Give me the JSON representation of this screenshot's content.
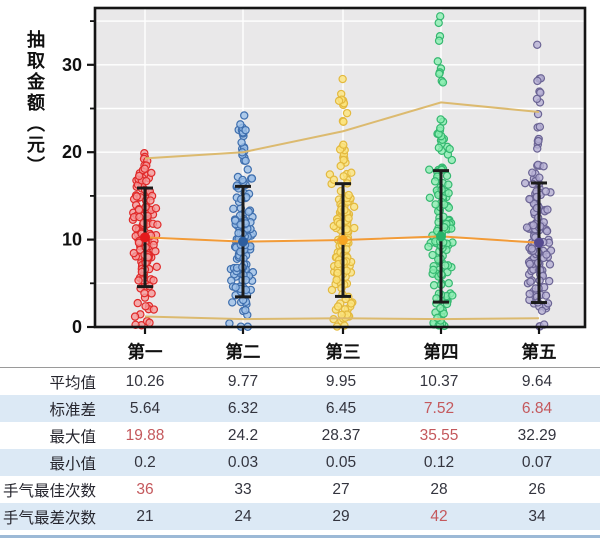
{
  "chart": {
    "y_axis_title": "抽取金额（元）",
    "y_ticks": [
      0,
      10,
      20,
      30
    ],
    "y_minor_ticks": [
      5,
      15,
      25,
      35
    ],
    "y_max": 36.5,
    "categories": [
      "第一",
      "第二",
      "第三",
      "第四",
      "第五"
    ],
    "colors": {
      "plot_bg": "#e9e8e9",
      "grid": "#ffffff",
      "frame": "#141414",
      "errorbar": "#1b1b1b",
      "line_outer": "#dcba6f",
      "line_mean": "#f29b38"
    },
    "groups": [
      {
        "label": "第一",
        "mean": 10.26,
        "std": 5.64,
        "max": 19.88,
        "min": 0.2,
        "fill": "#f59a9a",
        "stroke": "#e02b2b",
        "mean_dot": "#e41a1c"
      },
      {
        "label": "第二",
        "mean": 9.77,
        "std": 6.32,
        "max": 24.2,
        "min": 0.03,
        "fill": "#9dc0e8",
        "stroke": "#3f6fae",
        "mean_dot": "#2d5e9e"
      },
      {
        "label": "第三",
        "mean": 9.95,
        "std": 6.45,
        "max": 28.37,
        "min": 0.05,
        "fill": "#fbe37d",
        "stroke": "#e3b93e",
        "mean_dot": "#f5a623"
      },
      {
        "label": "第四",
        "mean": 10.37,
        "std": 7.52,
        "max": 35.55,
        "min": 0.12,
        "fill": "#8ceeb2",
        "stroke": "#35b870",
        "mean_dot": "#27b36a"
      },
      {
        "label": "第五",
        "mean": 9.64,
        "std": 6.84,
        "max": 32.29,
        "min": 0.07,
        "fill": "#b6b0d4",
        "stroke": "#6b6494",
        "mean_dot": "#554a8f"
      }
    ],
    "overlay_lines": {
      "upper": [
        19.3,
        20.0,
        22.4,
        25.7,
        24.6
      ],
      "mean": [
        10.26,
        9.77,
        9.95,
        10.37,
        9.64
      ],
      "lower": [
        1.2,
        0.9,
        1.0,
        0.9,
        1.0
      ]
    }
  },
  "table": {
    "highlight_color": "#c4585c",
    "alt_row_color": "#dce9f5",
    "columns": [
      "第一",
      "第二",
      "第三",
      "第四",
      "第五"
    ],
    "rows": [
      {
        "label": "平均值",
        "values": [
          "10.26",
          "9.77",
          "9.95",
          "10.37",
          "9.64"
        ],
        "red": [
          false,
          false,
          false,
          false,
          false
        ],
        "alt": false
      },
      {
        "label": "标准差",
        "values": [
          "5.64",
          "6.32",
          "6.45",
          "7.52",
          "6.84"
        ],
        "red": [
          false,
          false,
          false,
          true,
          true
        ],
        "alt": true
      },
      {
        "label": "最大值",
        "values": [
          "19.88",
          "24.2",
          "28.37",
          "35.55",
          "32.29"
        ],
        "red": [
          true,
          false,
          false,
          true,
          false
        ],
        "alt": false
      },
      {
        "label": "最小值",
        "values": [
          "0.2",
          "0.03",
          "0.05",
          "0.12",
          "0.07"
        ],
        "red": [
          false,
          false,
          false,
          false,
          false
        ],
        "alt": true
      },
      {
        "label": "手气最佳次数",
        "values": [
          "36",
          "33",
          "27",
          "28",
          "26"
        ],
        "red": [
          true,
          false,
          false,
          false,
          false
        ],
        "alt": false
      },
      {
        "label": "手气最差次数",
        "values": [
          "21",
          "24",
          "29",
          "42",
          "34"
        ],
        "red": [
          false,
          false,
          false,
          true,
          false
        ],
        "alt": true
      }
    ]
  },
  "chart_data": {
    "type": "strip",
    "title": "",
    "xlabel": "",
    "ylabel": "抽取金额（元）",
    "ylim": [
      0,
      36.5
    ],
    "yticks": [
      0,
      10,
      20,
      30
    ],
    "grid": true,
    "legend": false,
    "categories": [
      "第一",
      "第二",
      "第三",
      "第四",
      "第五"
    ],
    "series": [
      {
        "name": "平均值",
        "values": [
          10.26,
          9.77,
          9.95,
          10.37,
          9.64
        ]
      },
      {
        "name": "标准差",
        "values": [
          5.64,
          6.32,
          6.45,
          7.52,
          6.84
        ]
      },
      {
        "name": "最大值",
        "values": [
          19.88,
          24.2,
          28.37,
          35.55,
          32.29
        ]
      },
      {
        "name": "最小值",
        "values": [
          0.2,
          0.03,
          0.05,
          0.12,
          0.07
        ]
      },
      {
        "name": "手气最佳次数",
        "values": [
          36,
          33,
          27,
          28,
          26
        ]
      },
      {
        "name": "手气最差次数",
        "values": [
          21,
          24,
          29,
          42,
          34
        ]
      }
    ],
    "overlay_lines": {
      "upper": [
        19.3,
        20.0,
        22.4,
        25.7,
        24.6
      ],
      "mean": [
        10.26,
        9.77,
        9.95,
        10.37,
        9.64
      ],
      "lower": [
        1.2,
        0.9,
        1.0,
        0.9,
        1.0
      ]
    },
    "errorbars": "mean ± std, black caps",
    "points": "each category is a dense jittered column of draw amounts between min and max"
  }
}
